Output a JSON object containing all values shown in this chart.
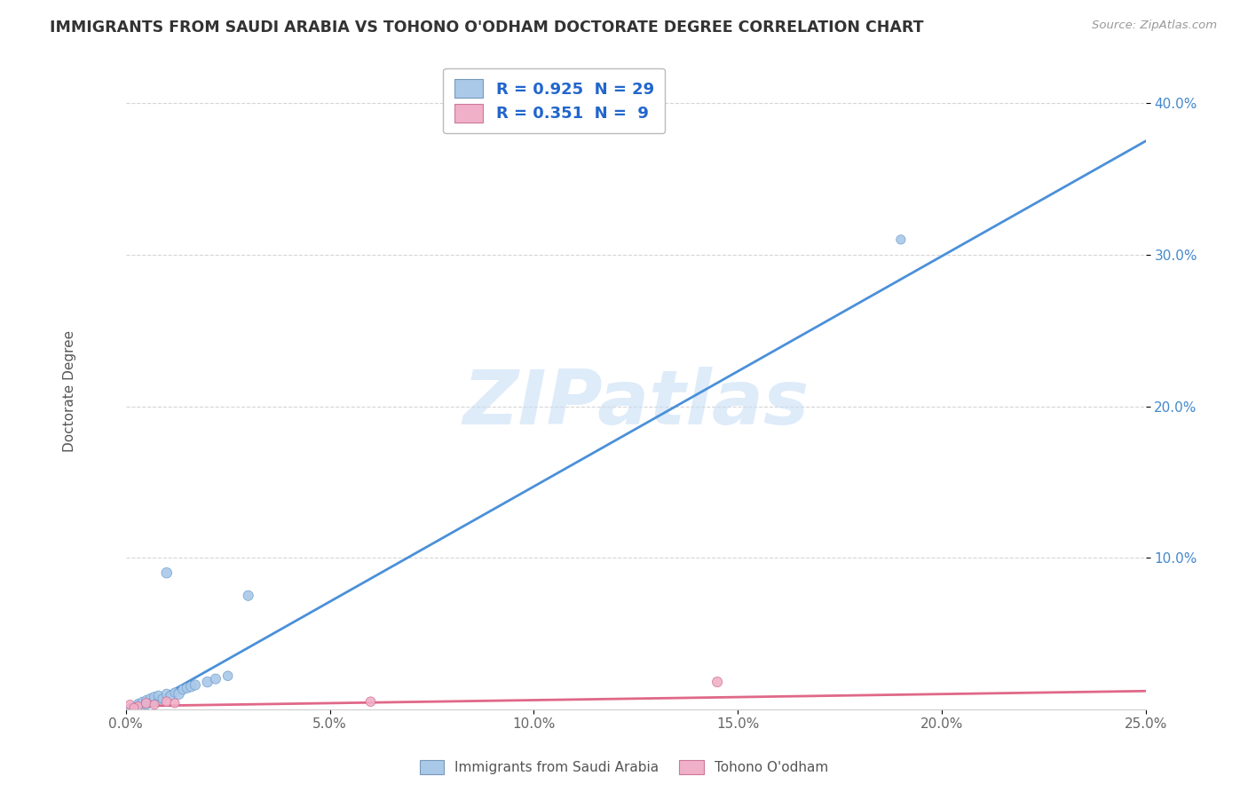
{
  "title": "IMMIGRANTS FROM SAUDI ARABIA VS TOHONO O'ODHAM DOCTORATE DEGREE CORRELATION CHART",
  "source": "Source: ZipAtlas.com",
  "ylabel": "Doctorate Degree",
  "xlim": [
    0.0,
    0.25
  ],
  "ylim": [
    0.0,
    0.42
  ],
  "xticks": [
    0.0,
    0.05,
    0.1,
    0.15,
    0.2,
    0.25
  ],
  "xtick_labels": [
    "0.0%",
    "5.0%",
    "10.0%",
    "15.0%",
    "20.0%",
    "25.0%"
  ],
  "yticks": [
    0.1,
    0.2,
    0.3,
    0.4
  ],
  "ytick_labels": [
    "10.0%",
    "20.0%",
    "30.0%",
    "40.0%"
  ],
  "blue_scatter_x": [
    0.001,
    0.002,
    0.003,
    0.003,
    0.004,
    0.004,
    0.005,
    0.005,
    0.006,
    0.006,
    0.007,
    0.007,
    0.008,
    0.008,
    0.009,
    0.01,
    0.011,
    0.012,
    0.013,
    0.014,
    0.015,
    0.016,
    0.017,
    0.02,
    0.022,
    0.025,
    0.01,
    0.03,
    0.19
  ],
  "blue_scatter_y": [
    0.001,
    0.002,
    0.003,
    0.004,
    0.002,
    0.005,
    0.003,
    0.006,
    0.004,
    0.007,
    0.005,
    0.008,
    0.006,
    0.009,
    0.007,
    0.01,
    0.009,
    0.011,
    0.01,
    0.013,
    0.014,
    0.015,
    0.016,
    0.018,
    0.02,
    0.022,
    0.09,
    0.075,
    0.31
  ],
  "blue_scatter_sizes": [
    40,
    45,
    50,
    45,
    55,
    50,
    60,
    55,
    50,
    60,
    55,
    65,
    50,
    60,
    55,
    65,
    60,
    55,
    70,
    60,
    65,
    70,
    65,
    70,
    65,
    60,
    70,
    65,
    55
  ],
  "pink_scatter_x": [
    0.001,
    0.003,
    0.005,
    0.007,
    0.01,
    0.012,
    0.06,
    0.145,
    0.002
  ],
  "pink_scatter_y": [
    0.003,
    0.002,
    0.004,
    0.003,
    0.005,
    0.004,
    0.005,
    0.018,
    0.001
  ],
  "pink_scatter_sizes": [
    55,
    50,
    60,
    55,
    60,
    55,
    60,
    65,
    50
  ],
  "blue_line_x0": 0.0,
  "blue_line_y0": -0.005,
  "blue_line_x1": 0.25,
  "blue_line_y1": 0.375,
  "pink_line_x0": 0.0,
  "pink_line_y0": 0.002,
  "pink_line_x1": 0.25,
  "pink_line_y1": 0.012,
  "blue_R": 0.925,
  "blue_N": 29,
  "pink_R": 0.351,
  "pink_N": 9,
  "blue_color": "#aac8e8",
  "blue_line_color": "#4a90d9",
  "pink_color": "#f0b0c8",
  "pink_line_color": "#e06888",
  "watermark_text": "ZIPatlas",
  "background_color": "#ffffff",
  "grid_color": "#cccccc",
  "legend_label_blue": "Immigrants from Saudi Arabia",
  "legend_label_pink": "Tohono O'odham"
}
